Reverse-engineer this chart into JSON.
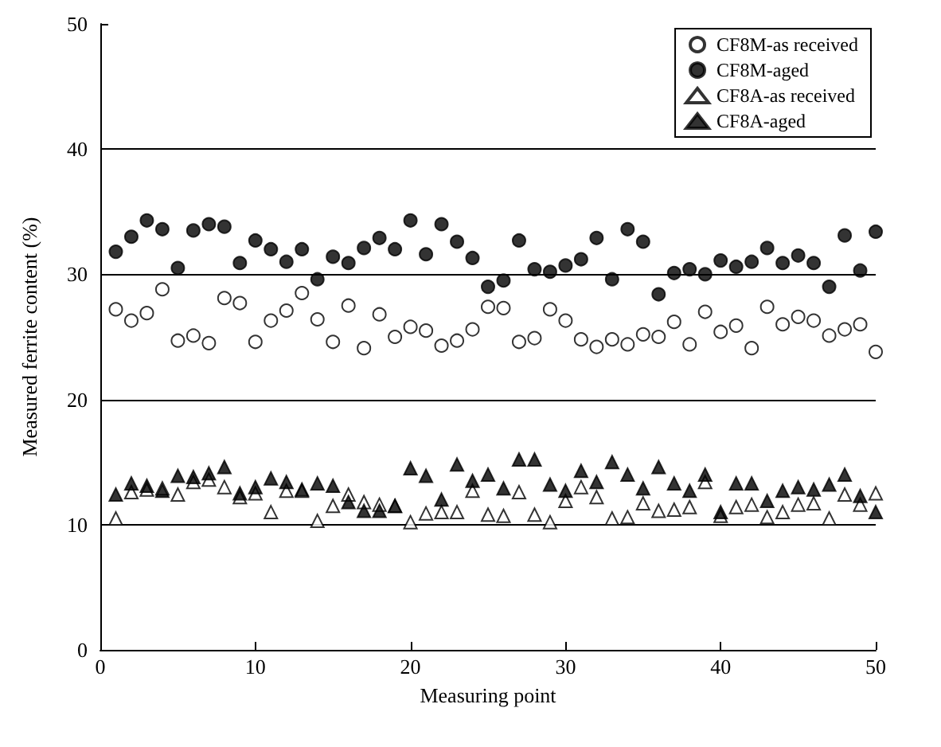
{
  "chart_data": {
    "type": "scatter",
    "xlabel": "Measuring point",
    "ylabel": "Measured ferrite content (%)",
    "x": [
      1,
      2,
      3,
      4,
      5,
      6,
      7,
      8,
      9,
      10,
      11,
      12,
      13,
      14,
      15,
      16,
      17,
      18,
      19,
      20,
      21,
      22,
      23,
      24,
      25,
      26,
      27,
      28,
      29,
      30,
      31,
      32,
      33,
      34,
      35,
      36,
      37,
      38,
      39,
      40,
      41,
      42,
      43,
      44,
      45,
      46,
      47,
      48,
      49,
      50
    ],
    "series": [
      {
        "name": "CF8M-as received",
        "color": "#ffffff",
        "marker": "circle",
        "values": [
          27.2,
          26.3,
          26.9,
          28.8,
          24.7,
          25.1,
          24.5,
          28.1,
          27.7,
          24.6,
          26.3,
          27.1,
          28.5,
          26.4,
          24.6,
          27.5,
          24.1,
          26.8,
          25.0,
          25.8,
          25.5,
          24.3,
          24.7,
          25.6,
          27.4,
          27.3,
          24.6,
          24.9,
          27.2,
          26.3,
          24.8,
          24.2,
          24.8,
          24.4,
          25.2,
          25.0,
          26.2,
          24.4,
          27.0,
          25.4,
          25.9,
          24.1,
          27.4,
          26.0,
          26.6,
          26.3,
          25.1,
          25.6,
          26.0,
          23.8
        ]
      },
      {
        "name": "CF8M-aged",
        "color": "#000000",
        "marker": "circle",
        "values": [
          31.8,
          33.0,
          34.3,
          33.6,
          30.5,
          33.5,
          34.0,
          33.8,
          30.9,
          32.7,
          32.0,
          31.0,
          32.0,
          29.6,
          31.4,
          30.9,
          32.1,
          32.9,
          32.0,
          34.3,
          31.6,
          34.0,
          32.6,
          31.3,
          29.0,
          29.5,
          32.7,
          30.4,
          30.2,
          30.7,
          31.2,
          32.9,
          29.6,
          33.6,
          32.6,
          28.4,
          30.1,
          30.4,
          30.0,
          31.1,
          30.6,
          31.0,
          32.1,
          30.9,
          31.5,
          30.9,
          29.0,
          33.1,
          30.3,
          33.4
        ]
      },
      {
        "name": "CF8A-as received",
        "color": "#ffffff",
        "marker": "triangle",
        "values": [
          10.5,
          12.6,
          12.8,
          12.9,
          12.4,
          13.4,
          13.6,
          13.0,
          12.2,
          12.5,
          11.0,
          12.7,
          12.7,
          10.3,
          11.5,
          12.4,
          11.8,
          11.6,
          11.5,
          10.2,
          10.9,
          11.0,
          11.0,
          12.7,
          10.8,
          10.7,
          12.6,
          10.8,
          10.2,
          11.9,
          13.0,
          12.2,
          10.5,
          10.6,
          11.7,
          11.1,
          11.2,
          11.4,
          13.4,
          10.7,
          11.4,
          11.6,
          10.6,
          11.0,
          11.6,
          11.7,
          10.5,
          12.4,
          11.6,
          12.5
        ]
      },
      {
        "name": "CF8A-aged",
        "color": "#000000",
        "marker": "triangle",
        "values": [
          12.4,
          13.3,
          13.1,
          12.7,
          13.9,
          13.8,
          14.1,
          14.6,
          12.5,
          13.0,
          13.7,
          13.4,
          12.8,
          13.3,
          13.1,
          11.8,
          11.1,
          11.1,
          11.5,
          14.5,
          13.9,
          12.0,
          14.8,
          13.5,
          14.0,
          12.9,
          15.2,
          15.2,
          13.2,
          12.7,
          14.3,
          13.4,
          15.0,
          14.0,
          12.9,
          14.6,
          13.3,
          12.7,
          14.0,
          11.0,
          13.3,
          13.3,
          11.9,
          12.7,
          13.0,
          12.8,
          13.2,
          14.0,
          12.3,
          11.0
        ]
      }
    ],
    "xlim": [
      0,
      50
    ],
    "xticks": [
      0,
      10,
      20,
      30,
      40,
      50
    ],
    "ylim": [
      0,
      50
    ],
    "yticks": [
      0,
      10,
      20,
      30,
      40,
      50
    ],
    "grid": "y",
    "legend": "top right"
  }
}
